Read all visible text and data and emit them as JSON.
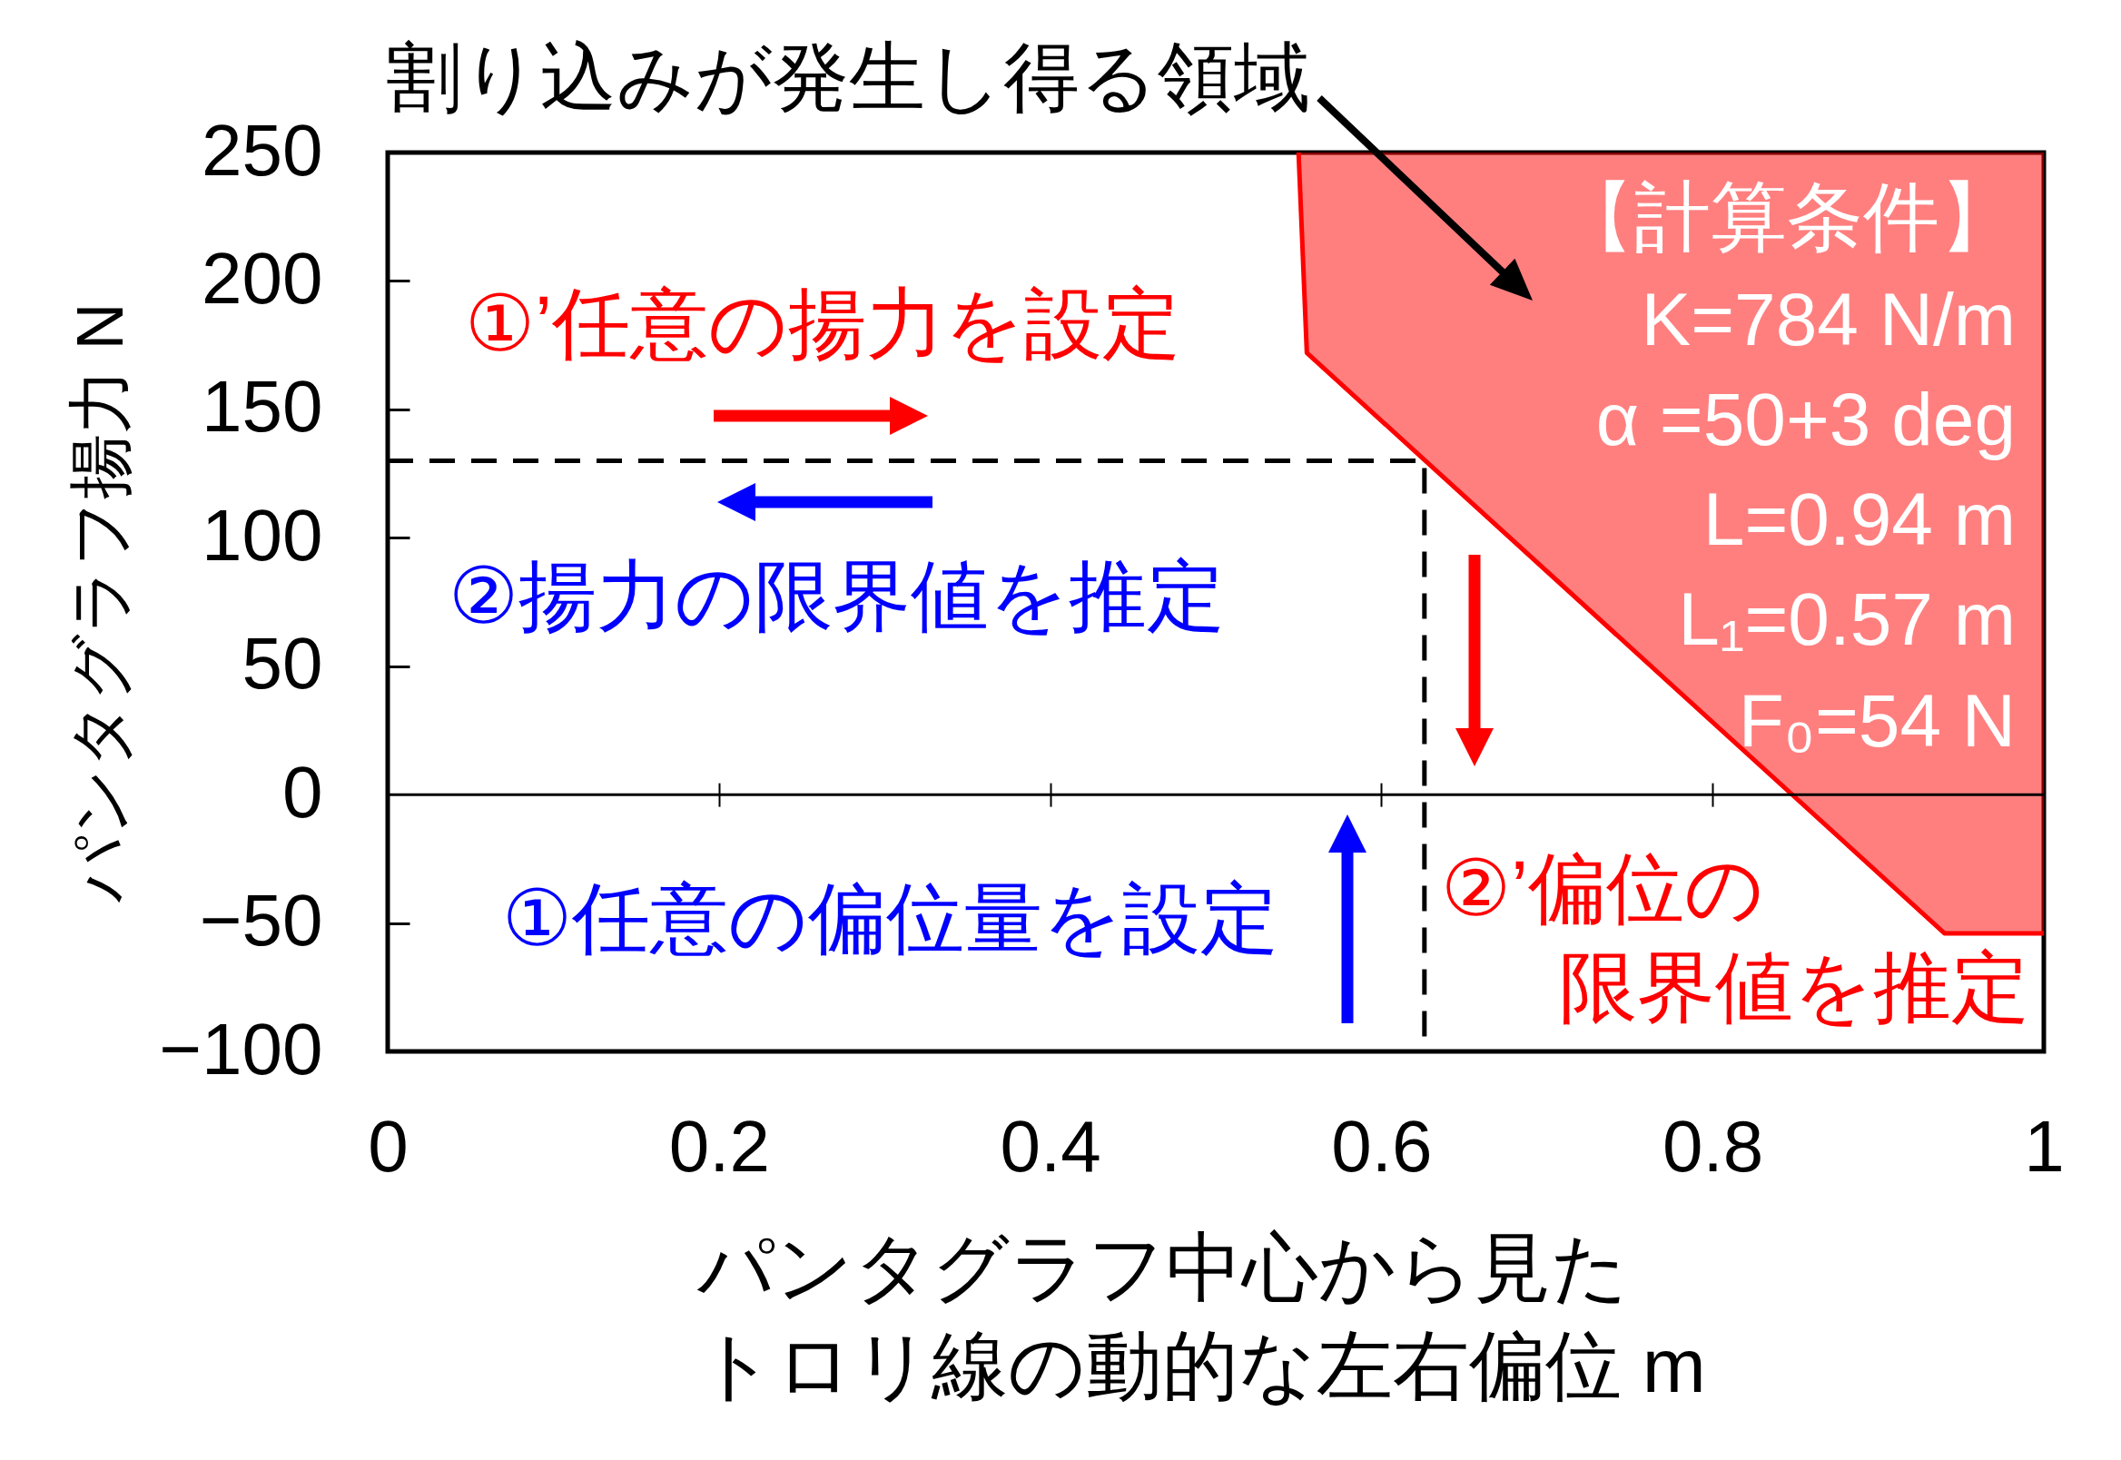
{
  "chart_data": {
    "type": "line",
    "xlabel": "パンタグラフ中心から見たトロリ線の動的な左右偏位 m",
    "ylabel": "パンタグラフ揚力 N",
    "xlim": [
      0,
      1
    ],
    "ylim": [
      -100,
      250
    ],
    "xticks": [
      0,
      0.2,
      0.4,
      0.6,
      0.8,
      1
    ],
    "yticks": [
      -100,
      -50,
      0,
      50,
      100,
      150,
      200,
      250
    ],
    "series": [
      {
        "color": "#ff0000",
        "x": [
          0.55,
          0.555,
          0.94,
          1
        ],
        "values": [
          250,
          172,
          -54,
          -54
        ],
        "lower": [
          250,
          172,
          -54,
          -54
        ],
        "upper": [
          250,
          250,
          250,
          250
        ]
      },
      {
        "color": "#000000",
        "line_style": "dashed",
        "x": [
          0,
          0.626,
          0.626
        ],
        "values": [
          130,
          130,
          -100
        ]
      }
    ],
    "ref_lines": [
      {
        "axis": "y",
        "value": 0,
        "color": "#000000"
      }
    ],
    "annotations": [
      "割り込みが発生し得る領域",
      "①’任意の揚力を設定",
      "②揚力の限界値を推定",
      "①任意の偏位量を設定",
      "②’偏位の",
      "限界値を推定",
      "【計算条件】",
      "K=784 N/m",
      "α =50+3 deg",
      "L=0.94 m",
      "L₁=0.57 m",
      "F₀=54 N"
    ]
  }
}
